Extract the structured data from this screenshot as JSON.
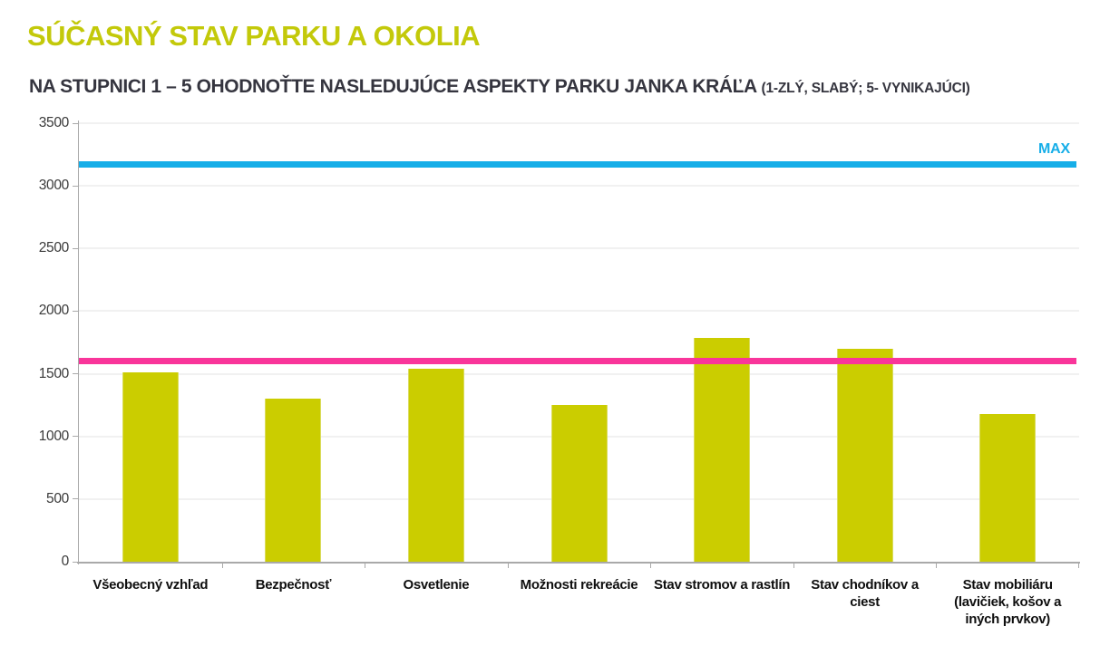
{
  "header": {
    "title": "SÚČASNÝ STAV PARKU A OKOLIA",
    "subtitle": "NA STUPNICI 1 – 5 OHODNOŤTE NASLEDUJÚCE ASPEKTY PARKU JANKA KRÁĽA",
    "subtitle_note": "(1-ZLÝ, SLABÝ; 5- VYNIKAJÚCI)"
  },
  "colors": {
    "title": "#C3C90A",
    "subtitle_text": "#35353F",
    "bar": "#CBCD00",
    "max_line": "#16AEE8",
    "pink_line": "#F9359A",
    "axis": "#A9A9A9",
    "gridline": "#F1F1F1"
  },
  "chart_data": {
    "type": "bar",
    "title": "SÚČASNÝ STAV PARKU A OKOLIA",
    "subtitle": "NA STUPNICI 1 – 5 OHODNOŤTE NASLEDUJÚCE ASPEKTY PARKU JANKA KRÁĽA (1-ZLÝ, SLABÝ; 5- VYNIKAJÚCI)",
    "categories": [
      "Všeobecný vzhľad",
      "Bezpečnosť",
      "Osvetlenie",
      "Možnosti rekreácie",
      "Stav stromov a rastlín",
      "Stav chodníkov a\nciest",
      "Stav mobiliáru\n(lavičiek, košov a\niných prvkov)"
    ],
    "values": [
      1510,
      1300,
      1540,
      1255,
      1785,
      1700,
      1180
    ],
    "xlabel": "",
    "ylabel": "",
    "ylim": [
      0,
      3500
    ],
    "ytick_step": 500,
    "grid": true,
    "legend": "none",
    "reference_lines": [
      {
        "label": "MAX",
        "value": 3170,
        "color": "#16AEE8"
      },
      {
        "label": "",
        "value": 1600,
        "color": "#F9359A"
      }
    ]
  }
}
